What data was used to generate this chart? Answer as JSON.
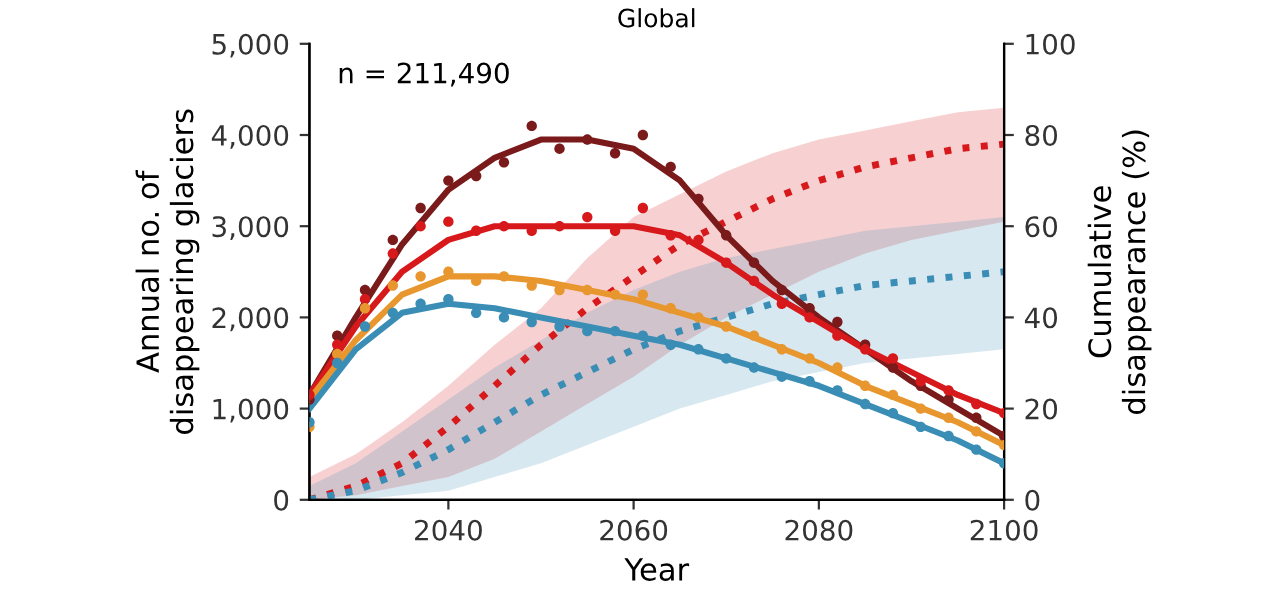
{
  "chart_data": {
    "type": "line",
    "title": "Global",
    "xlabel": "Year",
    "ylabel": "Annual no. of\ndisappearing glaciers",
    "y2label": "Cumulative\ndisappearance (%)",
    "annotations": [
      "n = 211,490"
    ],
    "xlim": [
      2025,
      2100
    ],
    "xticks": [
      2040,
      2060,
      2080,
      2100
    ],
    "ylim": [
      0,
      5000
    ],
    "yticks": [
      0,
      {
        "value": 1000,
        "label": "1,000"
      },
      {
        "value": 2000,
        "label": "2,000"
      },
      {
        "value": 3000,
        "label": "3,000"
      },
      {
        "value": 4000,
        "label": "4,000"
      },
      {
        "value": 5000,
        "label": "5,000"
      }
    ],
    "y2lim": [
      0,
      100
    ],
    "y2ticks": [
      0,
      20,
      40,
      60,
      80,
      100
    ],
    "grid": false,
    "legend": false,
    "series": [
      {
        "type": "line",
        "axis": "y2",
        "line_style": "dotted",
        "color": "#d7191c",
        "x": [
          2025,
          2030,
          2035,
          2040,
          2045,
          2050,
          2055,
          2060,
          2065,
          2070,
          2075,
          2080,
          2085,
          2090,
          2095,
          2100
        ],
        "values": [
          0,
          3,
          8,
          16,
          25,
          34,
          42,
          49,
          56,
          61,
          66,
          70,
          73,
          75,
          77,
          78
        ],
        "lower": [
          0,
          1,
          3,
          5,
          9,
          15,
          21,
          27,
          34,
          40,
          45,
          50,
          54,
          57,
          59,
          61
        ],
        "upper": [
          5,
          10,
          17,
          25,
          34,
          42,
          53,
          62,
          67,
          72,
          76,
          79,
          81,
          83,
          85,
          86
        ]
      },
      {
        "type": "line",
        "axis": "y2",
        "line_style": "dotted",
        "color": "#3a8db5",
        "x": [
          2025,
          2030,
          2035,
          2040,
          2045,
          2050,
          2055,
          2060,
          2065,
          2070,
          2075,
          2080,
          2085,
          2090,
          2095,
          2100
        ],
        "values": [
          0,
          2,
          6,
          11,
          17,
          23,
          28,
          33,
          37,
          40,
          43,
          45,
          47,
          48,
          49,
          50
        ],
        "lower": [
          0,
          0,
          1,
          2,
          5,
          8,
          12,
          16,
          20,
          23,
          26,
          28,
          30,
          31,
          32,
          33
        ],
        "upper": [
          3,
          8,
          15,
          22,
          29,
          35,
          41,
          46,
          50,
          53,
          55,
          57,
          59,
          60,
          61,
          62
        ]
      },
      {
        "type": "scatter",
        "marker": "circle",
        "color": "#7a1a1a",
        "x": [
          2025,
          2028,
          2031,
          2034,
          2037,
          2040,
          2043,
          2046,
          2049,
          2052,
          2055,
          2058,
          2061,
          2064,
          2067,
          2070,
          2073,
          2076,
          2079,
          2082,
          2085,
          2088,
          2091,
          2094,
          2097,
          2100
        ],
        "values": [
          1100,
          1800,
          2300,
          2850,
          3200,
          3500,
          3550,
          3700,
          4100,
          3850,
          3950,
          3800,
          4000,
          3650,
          3300,
          2900,
          2600,
          2300,
          2100,
          1950,
          1700,
          1450,
          1250,
          1100,
          900,
          700
        ]
      },
      {
        "type": "scatter",
        "marker": "circle",
        "color": "#d7191c",
        "x": [
          2025,
          2028,
          2031,
          2034,
          2037,
          2040,
          2043,
          2046,
          2049,
          2052,
          2055,
          2058,
          2061,
          2064,
          2067,
          2070,
          2073,
          2076,
          2079,
          2082,
          2085,
          2088,
          2091,
          2094,
          2097,
          2100
        ],
        "values": [
          1150,
          1700,
          2200,
          2700,
          3000,
          3050,
          2950,
          3000,
          2950,
          3000,
          3100,
          2950,
          3200,
          2900,
          2850,
          2600,
          2400,
          2150,
          2000,
          1800,
          1650,
          1550,
          1300,
          1200,
          1050,
          950
        ]
      },
      {
        "type": "scatter",
        "marker": "circle",
        "color": "#e8962e",
        "x": [
          2025,
          2028,
          2031,
          2034,
          2037,
          2040,
          2043,
          2046,
          2049,
          2052,
          2055,
          2058,
          2061,
          2064,
          2067,
          2070,
          2073,
          2076,
          2079,
          2082,
          2085,
          2088,
          2091,
          2094,
          2097,
          2100
        ],
        "values": [
          800,
          1600,
          2100,
          2350,
          2450,
          2500,
          2400,
          2450,
          2350,
          2300,
          2300,
          2250,
          2250,
          2100,
          2000,
          1900,
          1800,
          1650,
          1550,
          1450,
          1250,
          1150,
          1000,
          900,
          750,
          600
        ]
      },
      {
        "type": "scatter",
        "marker": "circle",
        "color": "#3a8db5",
        "x": [
          2025,
          2028,
          2031,
          2034,
          2037,
          2040,
          2043,
          2046,
          2049,
          2052,
          2055,
          2058,
          2061,
          2064,
          2067,
          2070,
          2073,
          2076,
          2079,
          2082,
          2085,
          2088,
          2091,
          2094,
          2097,
          2100
        ],
        "values": [
          850,
          1500,
          1900,
          2050,
          2150,
          2200,
          2050,
          2000,
          1950,
          1900,
          1850,
          1850,
          1800,
          1700,
          1650,
          1550,
          1450,
          1350,
          1300,
          1200,
          1050,
          950,
          800,
          700,
          550,
          400
        ]
      },
      {
        "line_style": "solid",
        "color": "#7a1a1a",
        "x": [
          2025,
          2030,
          2035,
          2040,
          2045,
          2050,
          2055,
          2060,
          2065,
          2070,
          2075,
          2080,
          2085,
          2090,
          2095,
          2100
        ],
        "values": [
          1150,
          2000,
          2800,
          3400,
          3750,
          3950,
          3950,
          3850,
          3500,
          2900,
          2400,
          2000,
          1650,
          1300,
          1000,
          700
        ]
      },
      {
        "line_style": "solid",
        "color": "#d7191c",
        "x": [
          2025,
          2030,
          2035,
          2040,
          2045,
          2050,
          2055,
          2060,
          2065,
          2070,
          2075,
          2080,
          2085,
          2090,
          2095,
          2100
        ],
        "values": [
          1150,
          1900,
          2500,
          2850,
          3000,
          3000,
          3000,
          3000,
          2900,
          2600,
          2250,
          1950,
          1650,
          1400,
          1150,
          950
        ]
      },
      {
        "line_style": "solid",
        "color": "#e8962e",
        "x": [
          2025,
          2030,
          2035,
          2040,
          2045,
          2050,
          2055,
          2060,
          2065,
          2070,
          2075,
          2080,
          2085,
          2090,
          2095,
          2100
        ],
        "values": [
          1100,
          1750,
          2250,
          2450,
          2450,
          2400,
          2300,
          2200,
          2050,
          1900,
          1700,
          1500,
          1250,
          1050,
          850,
          600
        ]
      },
      {
        "line_style": "solid",
        "color": "#3a8db5",
        "x": [
          2025,
          2030,
          2035,
          2040,
          2045,
          2050,
          2055,
          2060,
          2065,
          2070,
          2075,
          2080,
          2085,
          2090,
          2095,
          2100
        ],
        "values": [
          1000,
          1650,
          2050,
          2150,
          2100,
          2000,
          1900,
          1800,
          1700,
          1550,
          1400,
          1250,
          1050,
          850,
          650,
          400
        ]
      }
    ]
  }
}
